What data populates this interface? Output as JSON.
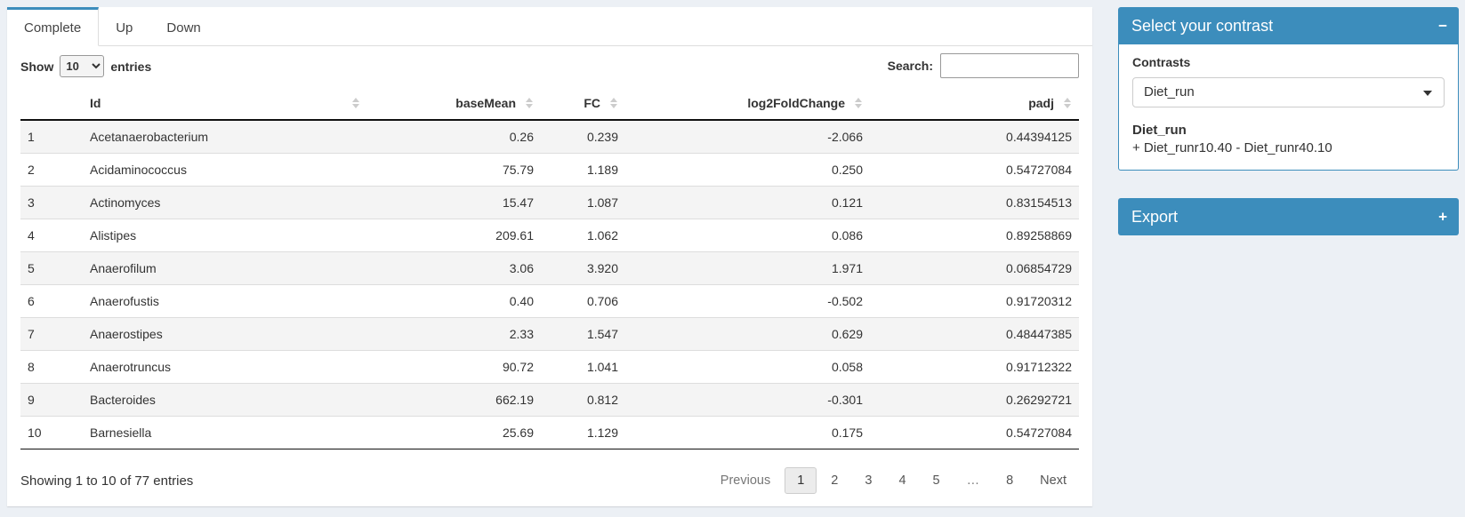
{
  "colors": {
    "accent": "#3c8dbc",
    "page_bg": "#ecf0f5",
    "stripe": "#f4f4f4",
    "dark_border": "#111111",
    "row_border": "#dddddd"
  },
  "tabs": {
    "items": [
      {
        "label": "Complete",
        "active": true
      },
      {
        "label": "Up",
        "active": false
      },
      {
        "label": "Down",
        "active": false
      }
    ]
  },
  "length_control": {
    "prefix": "Show",
    "selected": "10",
    "suffix": "entries"
  },
  "search": {
    "label": "Search:",
    "value": ""
  },
  "table": {
    "columns": [
      {
        "label": "",
        "sortable": false
      },
      {
        "label": "Id",
        "sortable": true
      },
      {
        "label": "baseMean",
        "sortable": true
      },
      {
        "label": "FC",
        "sortable": true
      },
      {
        "label": "log2FoldChange",
        "sortable": true
      },
      {
        "label": "padj",
        "sortable": true
      }
    ],
    "rows": [
      {
        "index": "1",
        "id": "Acetanaerobacterium",
        "baseMean": "0.26",
        "fc": "0.239",
        "log2FoldChange": "-2.066",
        "padj": "0.44394125"
      },
      {
        "index": "2",
        "id": "Acidaminococcus",
        "baseMean": "75.79",
        "fc": "1.189",
        "log2FoldChange": "0.250",
        "padj": "0.54727084"
      },
      {
        "index": "3",
        "id": "Actinomyces",
        "baseMean": "15.47",
        "fc": "1.087",
        "log2FoldChange": "0.121",
        "padj": "0.83154513"
      },
      {
        "index": "4",
        "id": "Alistipes",
        "baseMean": "209.61",
        "fc": "1.062",
        "log2FoldChange": "0.086",
        "padj": "0.89258869"
      },
      {
        "index": "5",
        "id": "Anaerofilum",
        "baseMean": "3.06",
        "fc": "3.920",
        "log2FoldChange": "1.971",
        "padj": "0.06854729"
      },
      {
        "index": "6",
        "id": "Anaerofustis",
        "baseMean": "0.40",
        "fc": "0.706",
        "log2FoldChange": "-0.502",
        "padj": "0.91720312"
      },
      {
        "index": "7",
        "id": "Anaerostipes",
        "baseMean": "2.33",
        "fc": "1.547",
        "log2FoldChange": "0.629",
        "padj": "0.48447385"
      },
      {
        "index": "8",
        "id": "Anaerotruncus",
        "baseMean": "90.72",
        "fc": "1.041",
        "log2FoldChange": "0.058",
        "padj": "0.91712322"
      },
      {
        "index": "9",
        "id": "Bacteroides",
        "baseMean": "662.19",
        "fc": "0.812",
        "log2FoldChange": "-0.301",
        "padj": "0.26292721"
      },
      {
        "index": "10",
        "id": "Barnesiella",
        "baseMean": "25.69",
        "fc": "1.129",
        "log2FoldChange": "0.175",
        "padj": "0.54727084"
      }
    ]
  },
  "footer": {
    "info": "Showing 1 to 10 of 77 entries",
    "pagination": [
      {
        "label": "Previous",
        "state": "disabled"
      },
      {
        "label": "1",
        "state": "active"
      },
      {
        "label": "2",
        "state": "normal"
      },
      {
        "label": "3",
        "state": "normal"
      },
      {
        "label": "4",
        "state": "normal"
      },
      {
        "label": "5",
        "state": "normal"
      },
      {
        "label": "…",
        "state": "disabled"
      },
      {
        "label": "8",
        "state": "normal"
      },
      {
        "label": "Next",
        "state": "normal"
      }
    ]
  },
  "contrast_box": {
    "title": "Select your contrast",
    "collapse_icon": "−",
    "field_label": "Contrasts",
    "selected_contrast": "Diet_run",
    "contrast_name": "Diet_run",
    "contrast_formula": "+ Diet_runr10.40 - Diet_runr40.10"
  },
  "export_box": {
    "title": "Export",
    "collapse_icon": "+"
  }
}
